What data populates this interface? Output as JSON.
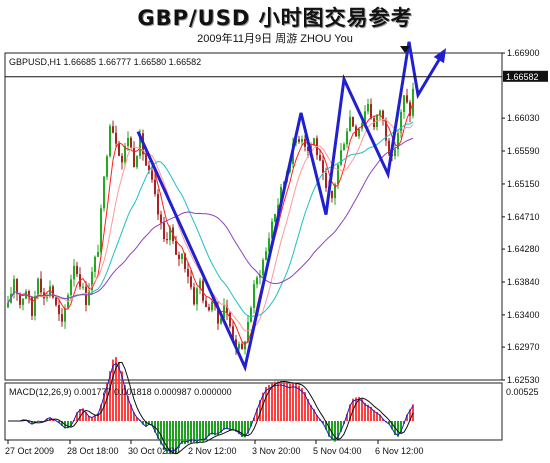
{
  "header": {
    "title": "GBP/USD 小时图交易参考",
    "subtitle": "2009年11月9日   周游 ZHOU You"
  },
  "chart_data": [
    {
      "type": "candlestick",
      "symbol_header": "GBPUSD,H1  1.66685 1.66777 1.66580 1.66582",
      "current_price_label": "1.66582",
      "ylim": [
        1.6253,
        1.669
      ],
      "y_ticks": [
        "1.66900",
        "1.66582",
        "1.66030",
        "1.65590",
        "1.65150",
        "1.64710",
        "1.64280",
        "1.63840",
        "1.63400",
        "1.62970",
        "1.62530"
      ],
      "x_tick_labels": [
        "27 Oct 2009",
        "28 Oct 18:00",
        "30 Oct 02:00",
        "2 Nov 12:00",
        "3 Nov 20:00",
        "5 Nov 04:00",
        "6 Nov 12:00"
      ],
      "price_path": [
        [
          0,
          1.635
        ],
        [
          6,
          1.639
        ],
        [
          12,
          1.6355
        ],
        [
          18,
          1.6375
        ],
        [
          24,
          1.634
        ],
        [
          30,
          1.6395
        ],
        [
          36,
          1.636
        ],
        [
          42,
          1.638
        ],
        [
          48,
          1.635
        ],
        [
          54,
          1.6325
        ],
        [
          60,
          1.637
        ],
        [
          66,
          1.641
        ],
        [
          72,
          1.6385
        ],
        [
          78,
          1.636
        ],
        [
          84,
          1.6395
        ],
        [
          90,
          1.643
        ],
        [
          96,
          1.652
        ],
        [
          102,
          1.66
        ],
        [
          108,
          1.6575
        ],
        [
          114,
          1.6545
        ],
        [
          120,
          1.658
        ],
        [
          126,
          1.6545
        ],
        [
          132,
          1.6575
        ],
        [
          138,
          1.654
        ],
        [
          144,
          1.6515
        ],
        [
          150,
          1.6475
        ],
        [
          156,
          1.644
        ],
        [
          162,
          1.6455
        ],
        [
          168,
          1.6415
        ],
        [
          174,
          1.642
        ],
        [
          180,
          1.6395
        ],
        [
          186,
          1.636
        ],
        [
          192,
          1.6385
        ],
        [
          198,
          1.6345
        ],
        [
          204,
          1.636
        ],
        [
          210,
          1.633
        ],
        [
          216,
          1.6355
        ],
        [
          222,
          1.6325
        ],
        [
          228,
          1.63
        ],
        [
          234,
          1.629
        ],
        [
          240,
          1.633
        ],
        [
          246,
          1.6375
        ],
        [
          252,
          1.64
        ],
        [
          258,
          1.6425
        ],
        [
          264,
          1.6465
        ],
        [
          270,
          1.649
        ],
        [
          276,
          1.652
        ],
        [
          282,
          1.655
        ],
        [
          288,
          1.6575
        ],
        [
          294,
          1.658
        ],
        [
          300,
          1.656
        ],
        [
          306,
          1.6575
        ],
        [
          312,
          1.654
        ],
        [
          318,
          1.6505
        ],
        [
          324,
          1.6495
        ],
        [
          330,
          1.654
        ],
        [
          336,
          1.6575
        ],
        [
          342,
          1.6605
        ],
        [
          348,
          1.6585
        ],
        [
          354,
          1.66
        ],
        [
          360,
          1.6625
        ],
        [
          366,
          1.659
        ],
        [
          372,
          1.6615
        ],
        [
          378,
          1.658
        ],
        [
          384,
          1.6545
        ],
        [
          390,
          1.6585
        ],
        [
          396,
          1.663
        ],
        [
          402,
          1.661
        ],
        [
          406,
          1.665
        ]
      ],
      "moving_averages": [
        {
          "color": "#ff2020",
          "period": 5
        },
        {
          "color": "#ff9999",
          "period": 10
        },
        {
          "color": "#20c0c0",
          "period": 20
        },
        {
          "color": "#9040c0",
          "period": 40
        }
      ],
      "annotation_zigzag": [
        [
          130,
          1.6585
        ],
        [
          237,
          1.627
        ],
        [
          293,
          1.661
        ],
        [
          318,
          1.6474
        ],
        [
          336,
          1.6655
        ],
        [
          380,
          1.6528
        ],
        [
          401,
          1.6705
        ],
        [
          410,
          1.6634
        ],
        [
          436,
          1.6692
        ]
      ],
      "annotation_color": "#2020d0"
    },
    {
      "type": "macd",
      "label": "MACD(12,26,9) 0.001777 0.001818 0.000987 0.000000",
      "y_ticks": [
        "0.00525"
      ],
      "ylim": [
        -0.003,
        0.006
      ]
    }
  ]
}
